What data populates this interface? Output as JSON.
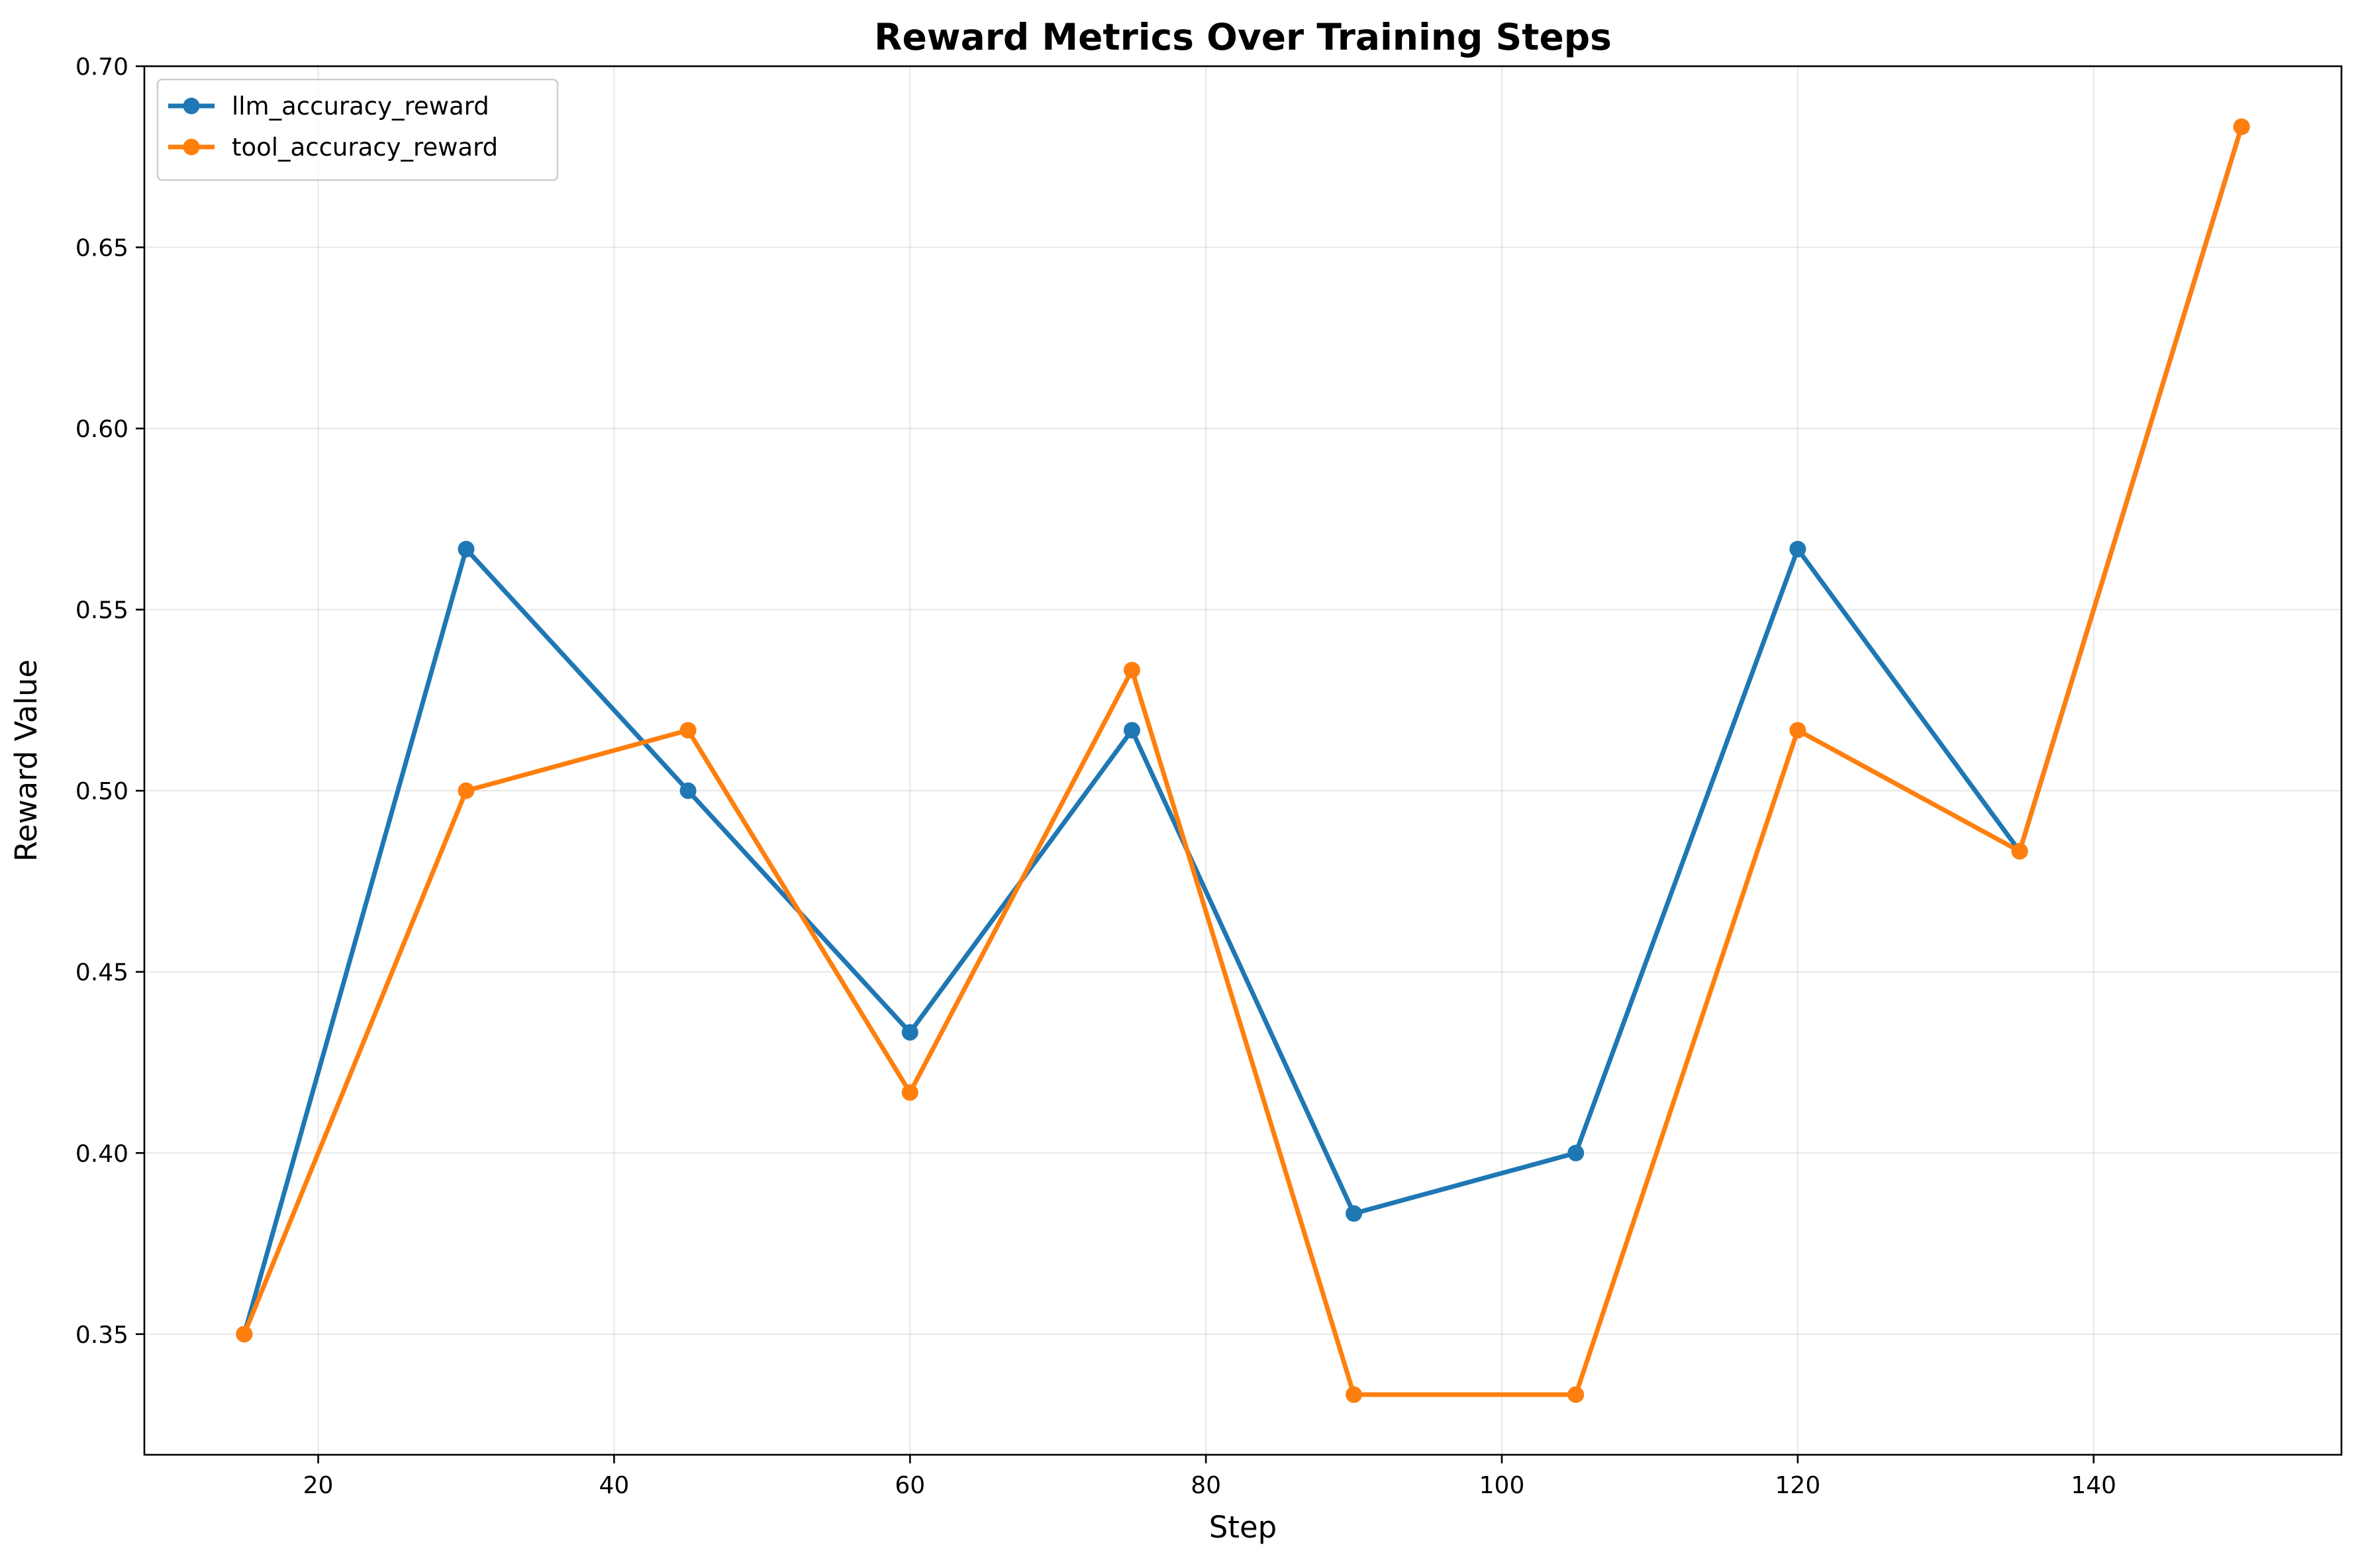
{
  "chart_data": {
    "type": "line",
    "title": "Reward Metrics Over Training Steps",
    "xlabel": "Step",
    "ylabel": "Reward Value",
    "x": [
      15,
      30,
      45,
      60,
      75,
      90,
      105,
      120,
      135,
      150
    ],
    "xlim": [
      8.25,
      156.75
    ],
    "ylim": [
      0.3167,
      0.7
    ],
    "xticks": [
      20,
      40,
      60,
      80,
      100,
      120,
      140
    ],
    "yticks": [
      0.35,
      0.4,
      0.45,
      0.5,
      0.55,
      0.6,
      0.65,
      0.7
    ],
    "xtick_labels": [
      "20",
      "40",
      "60",
      "80",
      "100",
      "120",
      "140"
    ],
    "ytick_labels": [
      "0.35",
      "0.40",
      "0.45",
      "0.50",
      "0.55",
      "0.60",
      "0.65",
      "0.70"
    ],
    "grid": true,
    "legend_position": "top-left",
    "series": [
      {
        "name": "llm_accuracy_reward",
        "color": "#1f77b4",
        "marker": "circle",
        "values": [
          0.35,
          0.5667,
          0.5,
          0.4333,
          0.5167,
          0.3833,
          0.4,
          0.5667,
          0.4833,
          0.6833
        ]
      },
      {
        "name": "tool_accuracy_reward",
        "color": "#ff7f0e",
        "marker": "circle",
        "values": [
          0.35,
          0.5,
          0.5167,
          0.4167,
          0.5333,
          0.3333,
          0.3333,
          0.5167,
          0.4833,
          0.6833
        ]
      }
    ]
  }
}
